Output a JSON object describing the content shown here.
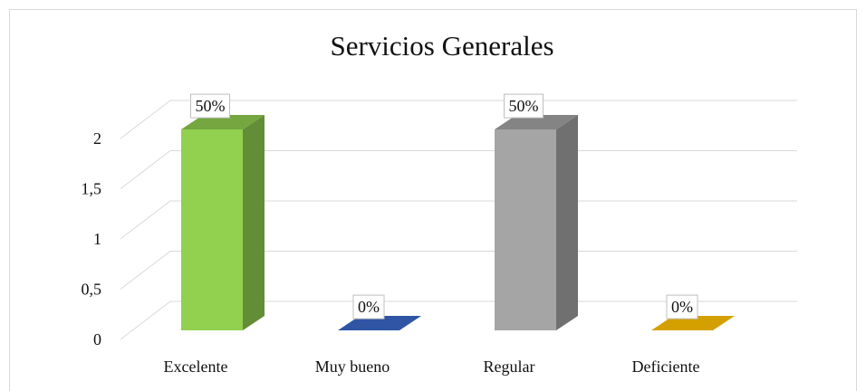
{
  "chart_data": {
    "type": "bar3d",
    "title": "Servicios Generales",
    "categories": [
      "Excelente",
      "Muy bueno",
      "Regular",
      "Deficiente"
    ],
    "values": [
      2,
      0,
      2,
      0
    ],
    "value_labels": [
      "50%",
      "0%",
      "50%",
      "0%"
    ],
    "colors": [
      "#92d050",
      "#2f55a4",
      "#a5a5a5",
      "#d4a000"
    ],
    "ylim": [
      0,
      2
    ],
    "yticks": [
      0,
      {
        "value": 0.5,
        "label": "0,5"
      },
      1,
      {
        "value": 1.5,
        "label": "1,5"
      },
      2
    ],
    "grid": true
  }
}
